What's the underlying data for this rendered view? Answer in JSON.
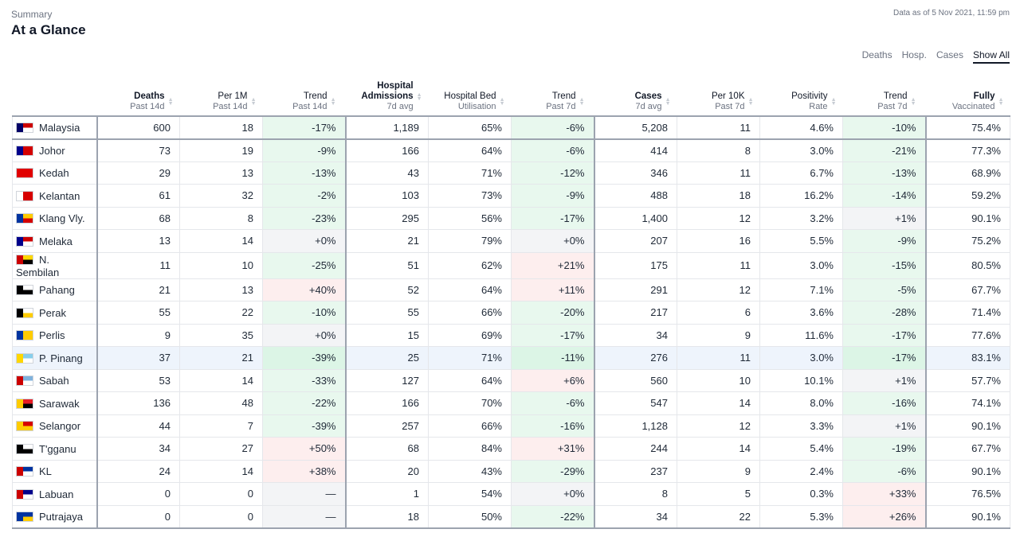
{
  "header": {
    "eyebrow": "Summary",
    "title": "At a Glance",
    "as_of": "Data as of 5 Nov 2021, 11:59 pm"
  },
  "tabs": [
    {
      "label": "Deaths",
      "active": false
    },
    {
      "label": "Hosp.",
      "active": false
    },
    {
      "label": "Cases",
      "active": false
    },
    {
      "label": "Show All",
      "active": true
    }
  ],
  "columns": [
    {
      "main": "",
      "sub": ""
    },
    {
      "main": "Deaths",
      "sub": "Past 14d",
      "bold": true
    },
    {
      "main": "Per 1M",
      "sub": "Past 14d"
    },
    {
      "main": "Trend",
      "sub": "Past 14d"
    },
    {
      "main": "Hospital Admissions",
      "sub": "7d avg",
      "bold": true
    },
    {
      "main": "Hospital Bed",
      "sub": "Utilisation"
    },
    {
      "main": "Trend",
      "sub": "Past 7d"
    },
    {
      "main": "Cases",
      "sub": "7d avg",
      "bold": true
    },
    {
      "main": "Per 10K",
      "sub": "Past 7d"
    },
    {
      "main": "Positivity",
      "sub": "Rate"
    },
    {
      "main": "Trend",
      "sub": "Past 7d"
    },
    {
      "main": "Fully",
      "sub": "Vaccinated",
      "bold": true
    }
  ],
  "flag_colors": {
    "Malaysia": [
      "#cc0001",
      "#ffffff",
      "#010066"
    ],
    "Johor": [
      "#d40000",
      "#d40000",
      "#00008b"
    ],
    "Kedah": [
      "#e10000",
      "#e10000",
      "#e10000"
    ],
    "Kelantan": [
      "#d70000",
      "#d70000",
      "#ffffff"
    ],
    "Klang Vly.": [
      "#ffcc00",
      "#d50000",
      "#0033a0"
    ],
    "Melaka": [
      "#cc0000",
      "#ffffff",
      "#00008b"
    ],
    "N. Sembilan": [
      "#ffd700",
      "#000000",
      "#cc0000"
    ],
    "Pahang": [
      "#ffffff",
      "#000000",
      "#000000"
    ],
    "Perak": [
      "#ffffff",
      "#ffcc00",
      "#000000"
    ],
    "Perlis": [
      "#ffcc00",
      "#ffcc00",
      "#0033a0"
    ],
    "P. Pinang": [
      "#87ceeb",
      "#ffffff",
      "#ffd700"
    ],
    "Sabah": [
      "#7fb2dd",
      "#ffffff",
      "#cc0000"
    ],
    "Sarawak": [
      "#e91c24",
      "#000000",
      "#ffcc00"
    ],
    "Selangor": [
      "#d50000",
      "#ffcc00",
      "#ffcc00"
    ],
    "T'gganu": [
      "#ffffff",
      "#000000",
      "#000000"
    ],
    "KL": [
      "#0033a0",
      "#ffffff",
      "#cc0000"
    ],
    "Labuan": [
      "#00008b",
      "#ffffff",
      "#cc0000"
    ],
    "Putrajaya": [
      "#0033a0",
      "#ffcc00",
      "#0033a0"
    ]
  },
  "rows": [
    {
      "name": "Malaysia",
      "deaths": "600",
      "deaths_per_1m": "18",
      "deaths_trend": "-17%",
      "admissions": "1,189",
      "bed_util": "65%",
      "hosp_trend": "-6%",
      "cases": "5,208",
      "cases_per_10k": "11",
      "positivity": "4.6%",
      "cases_trend": "-10%",
      "vaccinated": "75.4%"
    },
    {
      "name": "Johor",
      "deaths": "73",
      "deaths_per_1m": "19",
      "deaths_trend": "-9%",
      "admissions": "166",
      "bed_util": "64%",
      "hosp_trend": "-6%",
      "cases": "414",
      "cases_per_10k": "8",
      "positivity": "3.0%",
      "cases_trend": "-21%",
      "vaccinated": "77.3%"
    },
    {
      "name": "Kedah",
      "deaths": "29",
      "deaths_per_1m": "13",
      "deaths_trend": "-13%",
      "admissions": "43",
      "bed_util": "71%",
      "hosp_trend": "-12%",
      "cases": "346",
      "cases_per_10k": "11",
      "positivity": "6.7%",
      "cases_trend": "-13%",
      "vaccinated": "68.9%"
    },
    {
      "name": "Kelantan",
      "deaths": "61",
      "deaths_per_1m": "32",
      "deaths_trend": "-2%",
      "admissions": "103",
      "bed_util": "73%",
      "hosp_trend": "-9%",
      "cases": "488",
      "cases_per_10k": "18",
      "positivity": "16.2%",
      "cases_trend": "-14%",
      "vaccinated": "59.2%"
    },
    {
      "name": "Klang Vly.",
      "deaths": "68",
      "deaths_per_1m": "8",
      "deaths_trend": "-23%",
      "admissions": "295",
      "bed_util": "56%",
      "hosp_trend": "-17%",
      "cases": "1,400",
      "cases_per_10k": "12",
      "positivity": "3.2%",
      "cases_trend": "+1%",
      "vaccinated": "90.1%"
    },
    {
      "name": "Melaka",
      "deaths": "13",
      "deaths_per_1m": "14",
      "deaths_trend": "+0%",
      "admissions": "21",
      "bed_util": "79%",
      "hosp_trend": "+0%",
      "cases": "207",
      "cases_per_10k": "16",
      "positivity": "5.5%",
      "cases_trend": "-9%",
      "vaccinated": "75.2%"
    },
    {
      "name": "N. Sembilan",
      "deaths": "11",
      "deaths_per_1m": "10",
      "deaths_trend": "-25%",
      "admissions": "51",
      "bed_util": "62%",
      "hosp_trend": "+21%",
      "cases": "175",
      "cases_per_10k": "11",
      "positivity": "3.0%",
      "cases_trend": "-15%",
      "vaccinated": "80.5%"
    },
    {
      "name": "Pahang",
      "deaths": "21",
      "deaths_per_1m": "13",
      "deaths_trend": "+40%",
      "admissions": "52",
      "bed_util": "64%",
      "hosp_trend": "+11%",
      "cases": "291",
      "cases_per_10k": "12",
      "positivity": "7.1%",
      "cases_trend": "-5%",
      "vaccinated": "67.7%"
    },
    {
      "name": "Perak",
      "deaths": "55",
      "deaths_per_1m": "22",
      "deaths_trend": "-10%",
      "admissions": "55",
      "bed_util": "66%",
      "hosp_trend": "-20%",
      "cases": "217",
      "cases_per_10k": "6",
      "positivity": "3.6%",
      "cases_trend": "-28%",
      "vaccinated": "71.4%"
    },
    {
      "name": "Perlis",
      "deaths": "9",
      "deaths_per_1m": "35",
      "deaths_trend": "+0%",
      "admissions": "15",
      "bed_util": "69%",
      "hosp_trend": "-17%",
      "cases": "34",
      "cases_per_10k": "9",
      "positivity": "11.6%",
      "cases_trend": "-17%",
      "vaccinated": "77.6%"
    },
    {
      "name": "P. Pinang",
      "deaths": "37",
      "deaths_per_1m": "21",
      "deaths_trend": "-39%",
      "admissions": "25",
      "bed_util": "71%",
      "hosp_trend": "-11%",
      "cases": "276",
      "cases_per_10k": "11",
      "positivity": "3.0%",
      "cases_trend": "-17%",
      "vaccinated": "83.1%",
      "highlight": true
    },
    {
      "name": "Sabah",
      "deaths": "53",
      "deaths_per_1m": "14",
      "deaths_trend": "-33%",
      "admissions": "127",
      "bed_util": "64%",
      "hosp_trend": "+6%",
      "cases": "560",
      "cases_per_10k": "10",
      "positivity": "10.1%",
      "cases_trend": "+1%",
      "vaccinated": "57.7%"
    },
    {
      "name": "Sarawak",
      "deaths": "136",
      "deaths_per_1m": "48",
      "deaths_trend": "-22%",
      "admissions": "166",
      "bed_util": "70%",
      "hosp_trend": "-6%",
      "cases": "547",
      "cases_per_10k": "14",
      "positivity": "8.0%",
      "cases_trend": "-16%",
      "vaccinated": "74.1%"
    },
    {
      "name": "Selangor",
      "deaths": "44",
      "deaths_per_1m": "7",
      "deaths_trend": "-39%",
      "admissions": "257",
      "bed_util": "66%",
      "hosp_trend": "-16%",
      "cases": "1,128",
      "cases_per_10k": "12",
      "positivity": "3.3%",
      "cases_trend": "+1%",
      "vaccinated": "90.1%"
    },
    {
      "name": "T'gganu",
      "deaths": "34",
      "deaths_per_1m": "27",
      "deaths_trend": "+50%",
      "admissions": "68",
      "bed_util": "84%",
      "hosp_trend": "+31%",
      "cases": "244",
      "cases_per_10k": "14",
      "positivity": "5.4%",
      "cases_trend": "-19%",
      "vaccinated": "67.7%"
    },
    {
      "name": "KL",
      "deaths": "24",
      "deaths_per_1m": "14",
      "deaths_trend": "+38%",
      "admissions": "20",
      "bed_util": "43%",
      "hosp_trend": "-29%",
      "cases": "237",
      "cases_per_10k": "9",
      "positivity": "2.4%",
      "cases_trend": "-6%",
      "vaccinated": "90.1%"
    },
    {
      "name": "Labuan",
      "deaths": "0",
      "deaths_per_1m": "0",
      "deaths_trend": "—",
      "admissions": "1",
      "bed_util": "54%",
      "hosp_trend": "+0%",
      "cases": "8",
      "cases_per_10k": "5",
      "positivity": "0.3%",
      "cases_trend": "+33%",
      "vaccinated": "76.5%"
    },
    {
      "name": "Putrajaya",
      "deaths": "0",
      "deaths_per_1m": "0",
      "deaths_trend": "—",
      "admissions": "18",
      "bed_util": "50%",
      "hosp_trend": "-22%",
      "cases": "34",
      "cases_per_10k": "22",
      "positivity": "5.3%",
      "cases_trend": "+26%",
      "vaccinated": "90.1%"
    }
  ]
}
